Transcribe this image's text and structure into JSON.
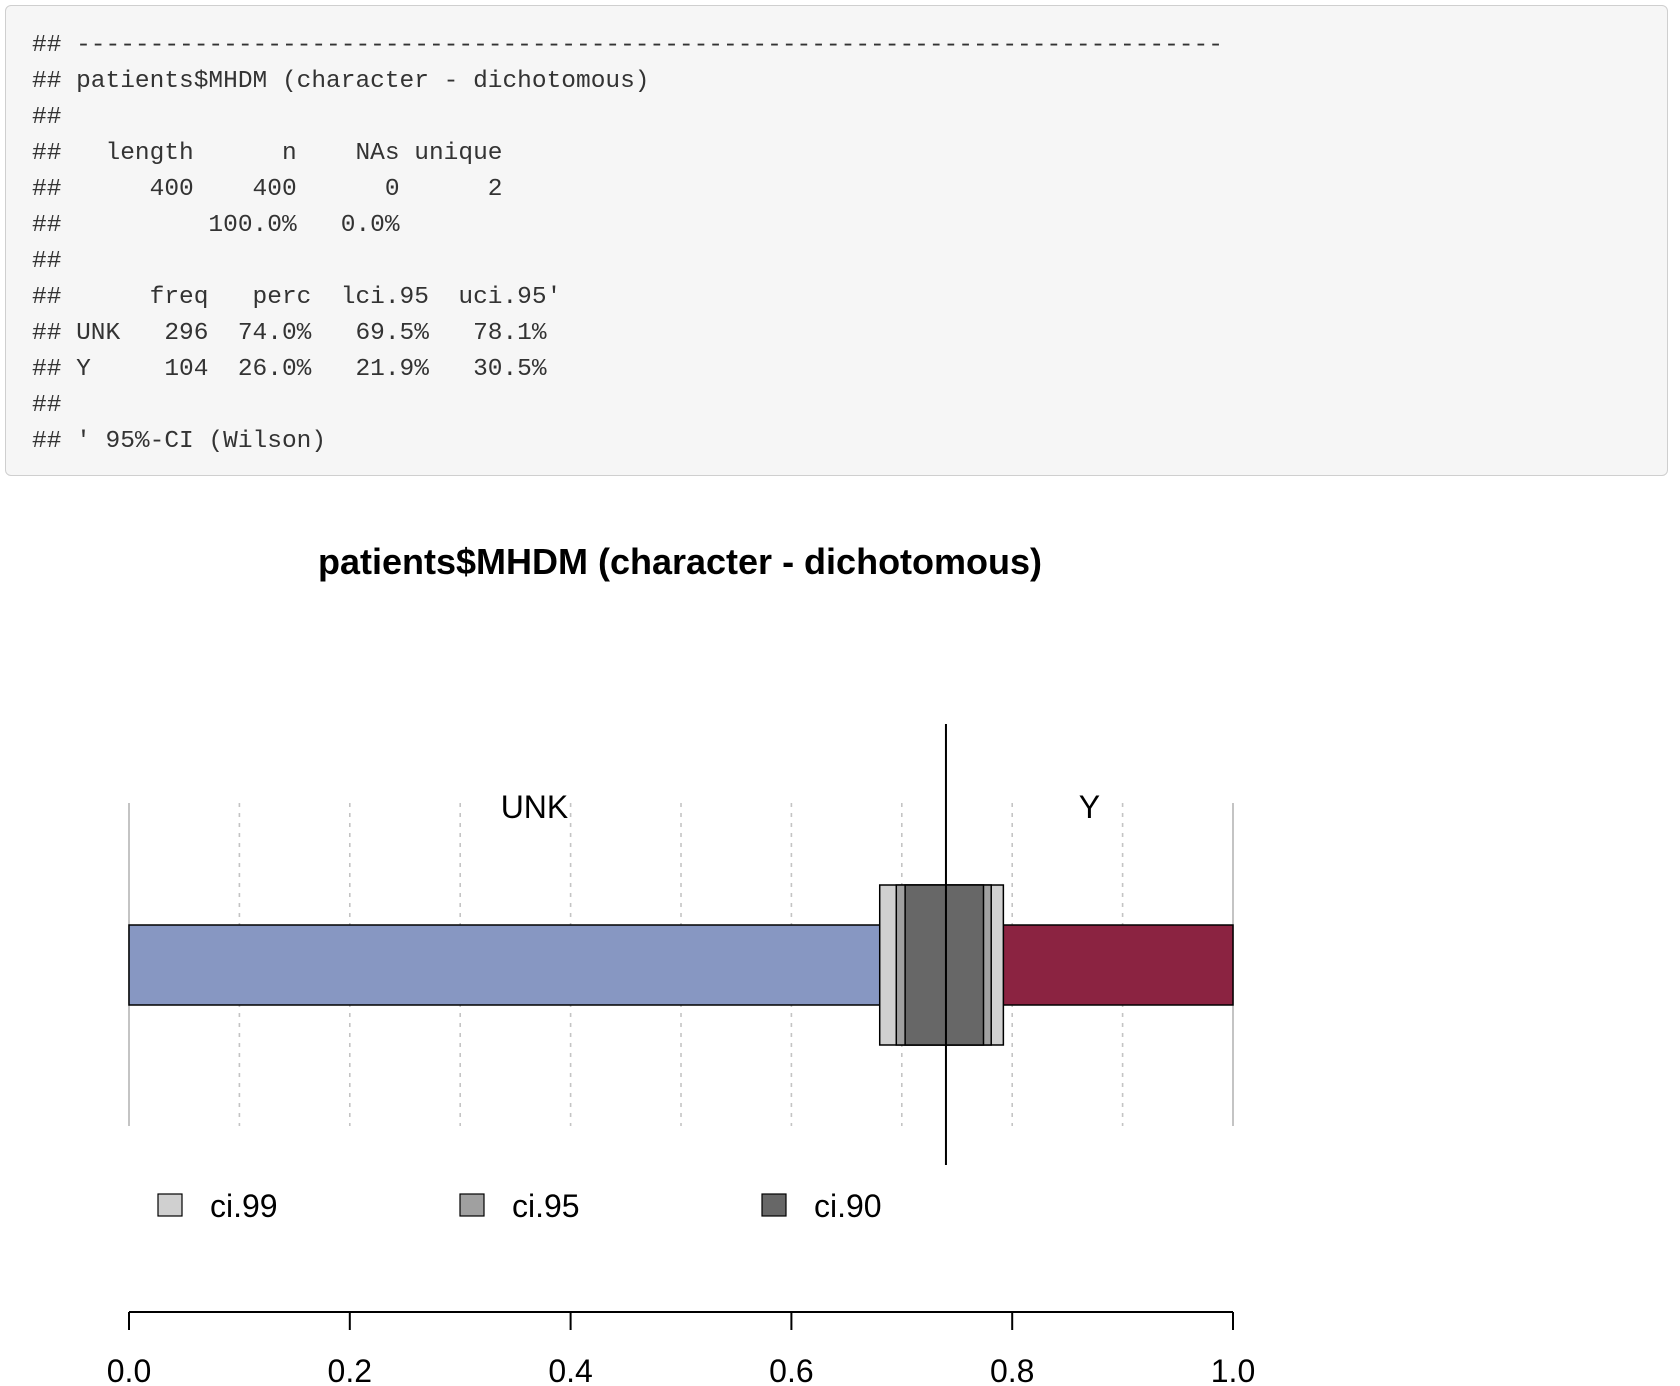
{
  "console": {
    "lines": [
      "## ------------------------------------------------------------------------------",
      "## patients$MHDM (character - dichotomous)",
      "##",
      "##   length      n    NAs unique",
      "##      400    400      0      2",
      "##          100.0%   0.0%",
      "##",
      "##      freq   perc  lci.95  uci.95'",
      "## UNK   296  74.0%   69.5%   78.1%",
      "## Y     104  26.0%   21.9%   30.5%",
      "##",
      "## ' 95%-CI (Wilson)"
    ]
  },
  "chart_data": {
    "type": "bar",
    "orientation": "horizontal-stacked-proportion",
    "title": "patients$MHDM (character - dichotomous)",
    "categories": [
      "UNK",
      "Y"
    ],
    "values": [
      0.74,
      0.26
    ],
    "colors": {
      "UNK": "#8797c2",
      "Y": "#8b2341"
    },
    "xlim": [
      0,
      1
    ],
    "x_ticks": [
      "0.0",
      "0.2",
      "0.4",
      "0.6",
      "0.8",
      "1.0"
    ],
    "grid": "vertical dotted every 0.1",
    "reference_line": 0.74,
    "confidence_intervals": [
      {
        "name": "ci.99",
        "lower": 0.68,
        "upper": 0.792,
        "color": "#d0d0d0"
      },
      {
        "name": "ci.95",
        "lower": 0.695,
        "upper": 0.781,
        "color": "#a0a0a0"
      },
      {
        "name": "ci.90",
        "lower": 0.703,
        "upper": 0.774,
        "color": "#676767"
      }
    ],
    "legend": [
      "ci.99",
      "ci.95",
      "ci.90"
    ],
    "legend_position": "below plot"
  }
}
